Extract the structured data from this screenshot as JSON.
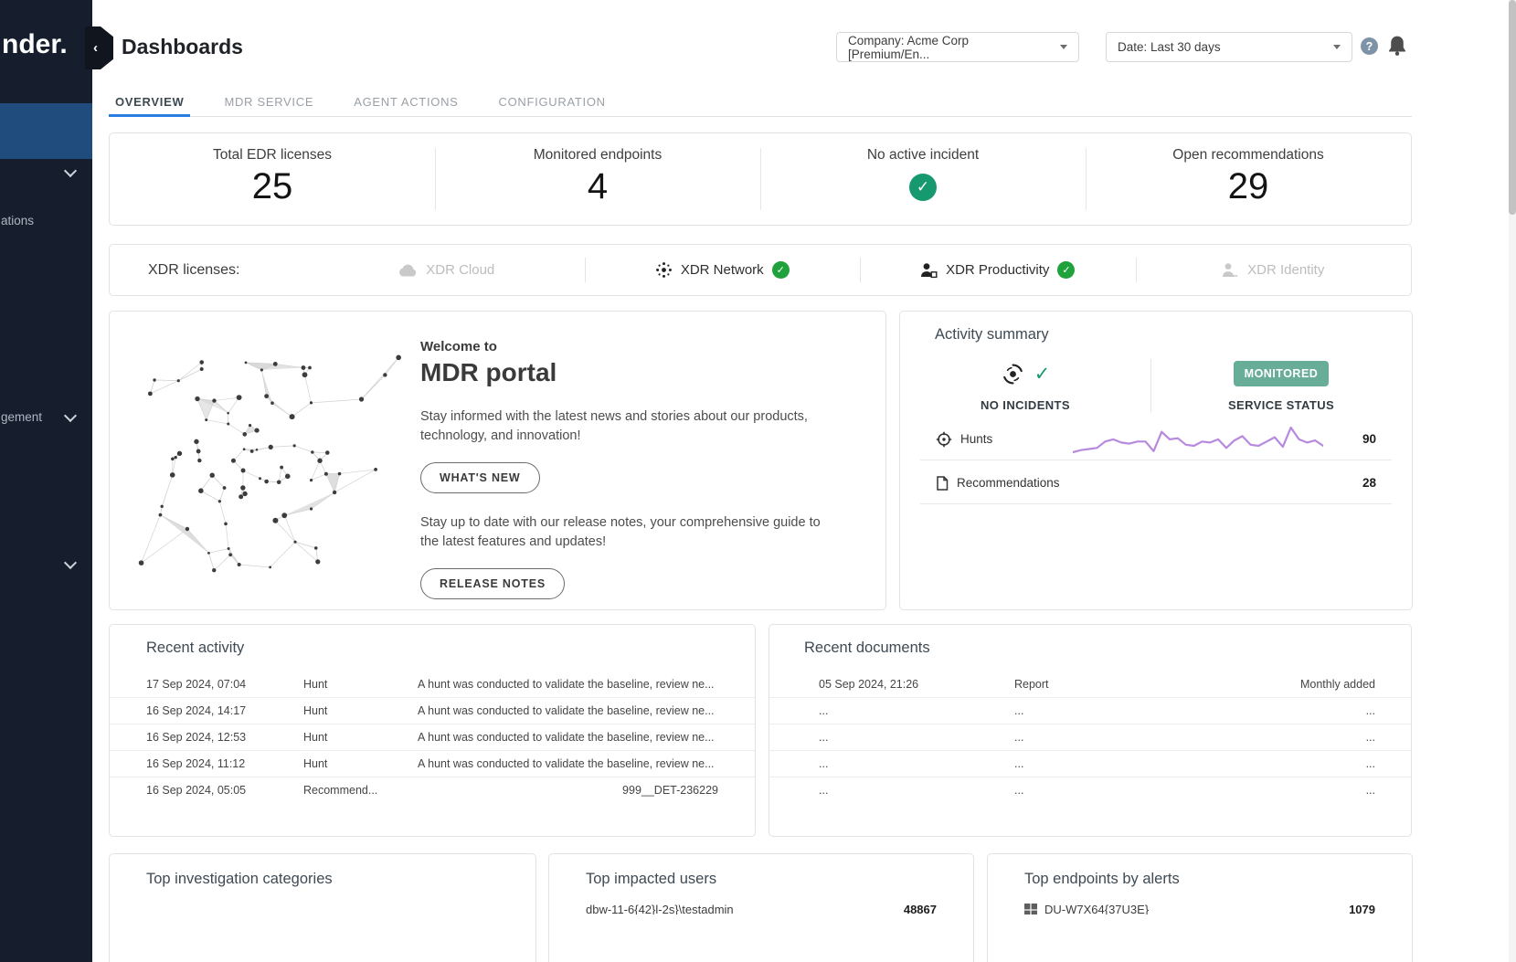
{
  "colors": {
    "sidebar_bg": "#161e2d",
    "sidebar_active": "#1f4b7d",
    "accent_blue": "#2a7de1",
    "teal_check": "#17996f",
    "green_check": "#1fa23c",
    "badge_teal": "#68ad97",
    "sparkline_purple": "#b78ae0"
  },
  "icons": {
    "check": "✓",
    "collapse": "‹",
    "help": "?"
  },
  "sidebar": {
    "logo_text": "nder.",
    "items": [
      {
        "label": "ations"
      },
      {
        "label": "gement"
      }
    ]
  },
  "header": {
    "title": "Dashboards",
    "company_filter": "Company: Acme Corp [Premium/En...",
    "date_filter": "Date: Last 30 days"
  },
  "tabs": {
    "active": "OVERVIEW",
    "items": [
      {
        "label": "OVERVIEW"
      },
      {
        "label": "MDR SERVICE"
      },
      {
        "label": "AGENT ACTIONS"
      },
      {
        "label": "CONFIGURATION"
      }
    ]
  },
  "stats": {
    "cards": [
      {
        "label": "Total EDR licenses",
        "value": "25"
      },
      {
        "label": "Monitored endpoints",
        "value": "4"
      },
      {
        "label": "No active incident",
        "value": ""
      },
      {
        "label": "Open recommendations",
        "value": "29"
      }
    ]
  },
  "xdr": {
    "label": "XDR licenses:",
    "items": [
      {
        "name": "XDR Cloud",
        "enabled": false,
        "check": false
      },
      {
        "name": "XDR Network",
        "enabled": true,
        "check": true
      },
      {
        "name": "XDR Productivity",
        "enabled": true,
        "check": true
      },
      {
        "name": "XDR Identity",
        "enabled": false,
        "check": false
      }
    ]
  },
  "welcome": {
    "eyebrow": "Welcome to",
    "title": "MDR portal",
    "paragraph1": "Stay informed with the latest news and stories about our products, technology, and innovation!",
    "button1": "WHAT'S NEW",
    "paragraph2": "Stay up to date with our release notes, your comprehensive guide to the latest features and updates!",
    "button2": "RELEASE NOTES"
  },
  "activity_summary": {
    "title": "Activity summary",
    "no_incidents_label": "NO INCIDENTS",
    "service_badge": "MONITORED",
    "service_label": "SERVICE STATUS",
    "hunts_label": "Hunts",
    "hunts_value": "90",
    "recommendations_label": "Recommendations",
    "recommendations_value": "28",
    "chart_data": {
      "type": "line",
      "name": "Hunts sparkline (values estimated from pixels)",
      "values": [
        3,
        5,
        6,
        7,
        13,
        15,
        12,
        11,
        13,
        13,
        4,
        22,
        15,
        16,
        10,
        9,
        13,
        12,
        15,
        7,
        14,
        18,
        10,
        9,
        13,
        17,
        8,
        26,
        15,
        12,
        14,
        9
      ]
    }
  },
  "recent_activity": {
    "title": "Recent activity",
    "rows": [
      {
        "date": "17 Sep 2024, 07:04",
        "type": "Hunt",
        "description": "A hunt was conducted to validate the baseline, review ne...",
        "ref": ""
      },
      {
        "date": "16 Sep 2024, 14:17",
        "type": "Hunt",
        "description": "A hunt was conducted to validate the baseline, review ne...",
        "ref": ""
      },
      {
        "date": "16 Sep 2024, 12:53",
        "type": "Hunt",
        "description": "A hunt was conducted to validate the baseline, review ne...",
        "ref": ""
      },
      {
        "date": "16 Sep 2024, 11:12",
        "type": "Hunt",
        "description": "A hunt was conducted to validate the baseline, review ne...",
        "ref": ""
      },
      {
        "date": "16 Sep 2024, 05:05",
        "type": "Recommend...",
        "description": "",
        "ref": "999__DET-236229"
      }
    ]
  },
  "recent_documents": {
    "title": "Recent documents",
    "rows": [
      {
        "date": "05 Sep 2024, 21:26",
        "type": "Report",
        "right": "Monthly added"
      },
      {
        "date": "...",
        "type": "...",
        "right": "..."
      },
      {
        "date": "...",
        "type": "...",
        "right": "..."
      },
      {
        "date": "...",
        "type": "...",
        "right": "..."
      },
      {
        "date": "...",
        "type": "...",
        "right": "..."
      }
    ]
  },
  "bottom_cards": {
    "investigation": {
      "title": "Top investigation categories"
    },
    "impacted_users": {
      "title": "Top impacted users",
      "row": {
        "label": "dbw-11-6{42}l-2s}\\testadmin",
        "value": "48867"
      }
    },
    "endpoints": {
      "title": "Top endpoints by alerts",
      "row": {
        "label": "DU-W7X64{37U3E}",
        "value": "1079"
      }
    }
  }
}
